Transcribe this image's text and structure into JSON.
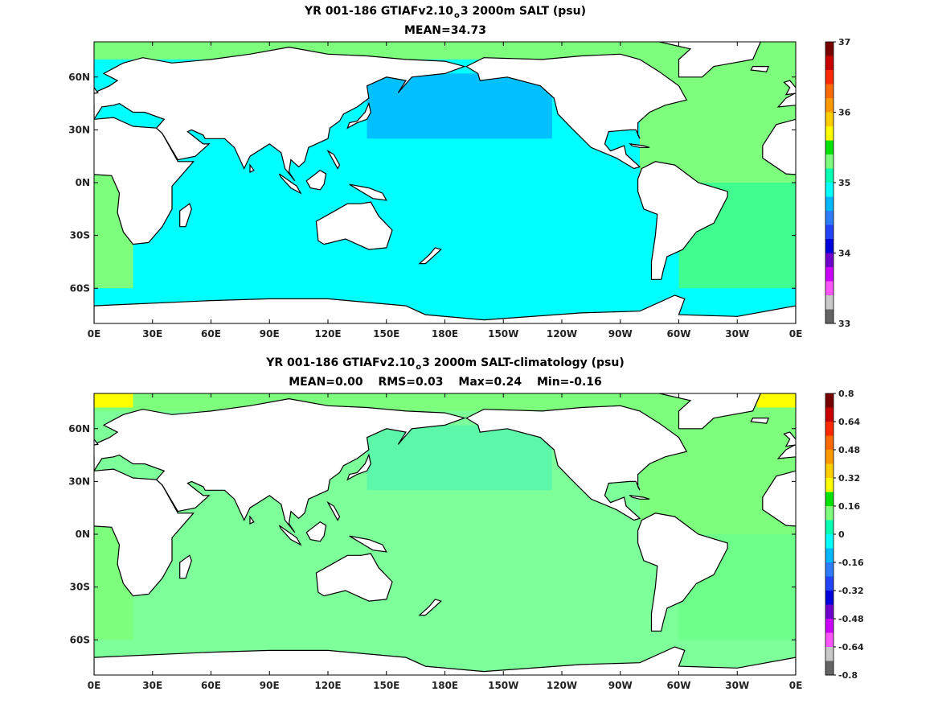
{
  "panels": [
    {
      "title_prefix": "YR 001-186 GTIAFv2.10",
      "title_sub": "o",
      "title_suffix": "3 2000m SALT (psu)",
      "stats": [
        "MEAN=34.73"
      ],
      "colorbar": {
        "labels": [
          "37",
          "36",
          "35",
          "34",
          "33"
        ],
        "colors": [
          "#7a0000",
          "#c80000",
          "#ff2a00",
          "#ff6a00",
          "#ff9900",
          "#ffcc00",
          "#ffff00",
          "#00e400",
          "#7dff7d",
          "#00ffb0",
          "#00ffff",
          "#00b8ff",
          "#2b7cff",
          "#2244ff",
          "#0000dd",
          "#7000cc",
          "#cc00ff",
          "#ff55ff",
          "#c8c8c8",
          "#646464"
        ]
      },
      "fields": {
        "ocean": "#00ffff",
        "north_pacific": "#00c0ff",
        "atlantic": "#7dff7d",
        "atlantic_south": "#40ff90"
      }
    },
    {
      "title_prefix": "YR 001-186 GTIAFv2.10",
      "title_sub": "o",
      "title_suffix": "3 2000m SALT-climatology (psu)",
      "stats": [
        "MEAN=0.00",
        "RMS=0.03",
        "Max=0.24",
        "Min=-0.16"
      ],
      "colorbar": {
        "labels": [
          "0.8",
          "0.64",
          "0.48",
          "0.32",
          "0.16",
          "0",
          "-0.16",
          "-0.32",
          "-0.48",
          "-0.64",
          "-0.8"
        ],
        "colors": [
          "#7a0000",
          "#c80000",
          "#ff2a00",
          "#ff6a00",
          "#ff9900",
          "#ffcc00",
          "#ffff00",
          "#00e400",
          "#7dff7d",
          "#00ffb0",
          "#00ffff",
          "#00b8ff",
          "#2b7cff",
          "#2244ff",
          "#0000dd",
          "#7000cc",
          "#cc00ff",
          "#ff55ff",
          "#c8c8c8",
          "#646464"
        ]
      },
      "fields": {
        "ocean": "#7dff9a",
        "north_pacific": "#5cf7a8",
        "atlantic": "#7dff7d",
        "atlantic_south": "#6dff8a",
        "arctic": "#ffff00"
      }
    }
  ],
  "axes": {
    "lon_labels": [
      "0E",
      "30E",
      "60E",
      "90E",
      "120E",
      "150E",
      "180E",
      "150W",
      "120W",
      "90W",
      "60W",
      "30W",
      "0E"
    ],
    "lat_labels": [
      "60N",
      "30N",
      "0N",
      "30S",
      "60S"
    ]
  }
}
